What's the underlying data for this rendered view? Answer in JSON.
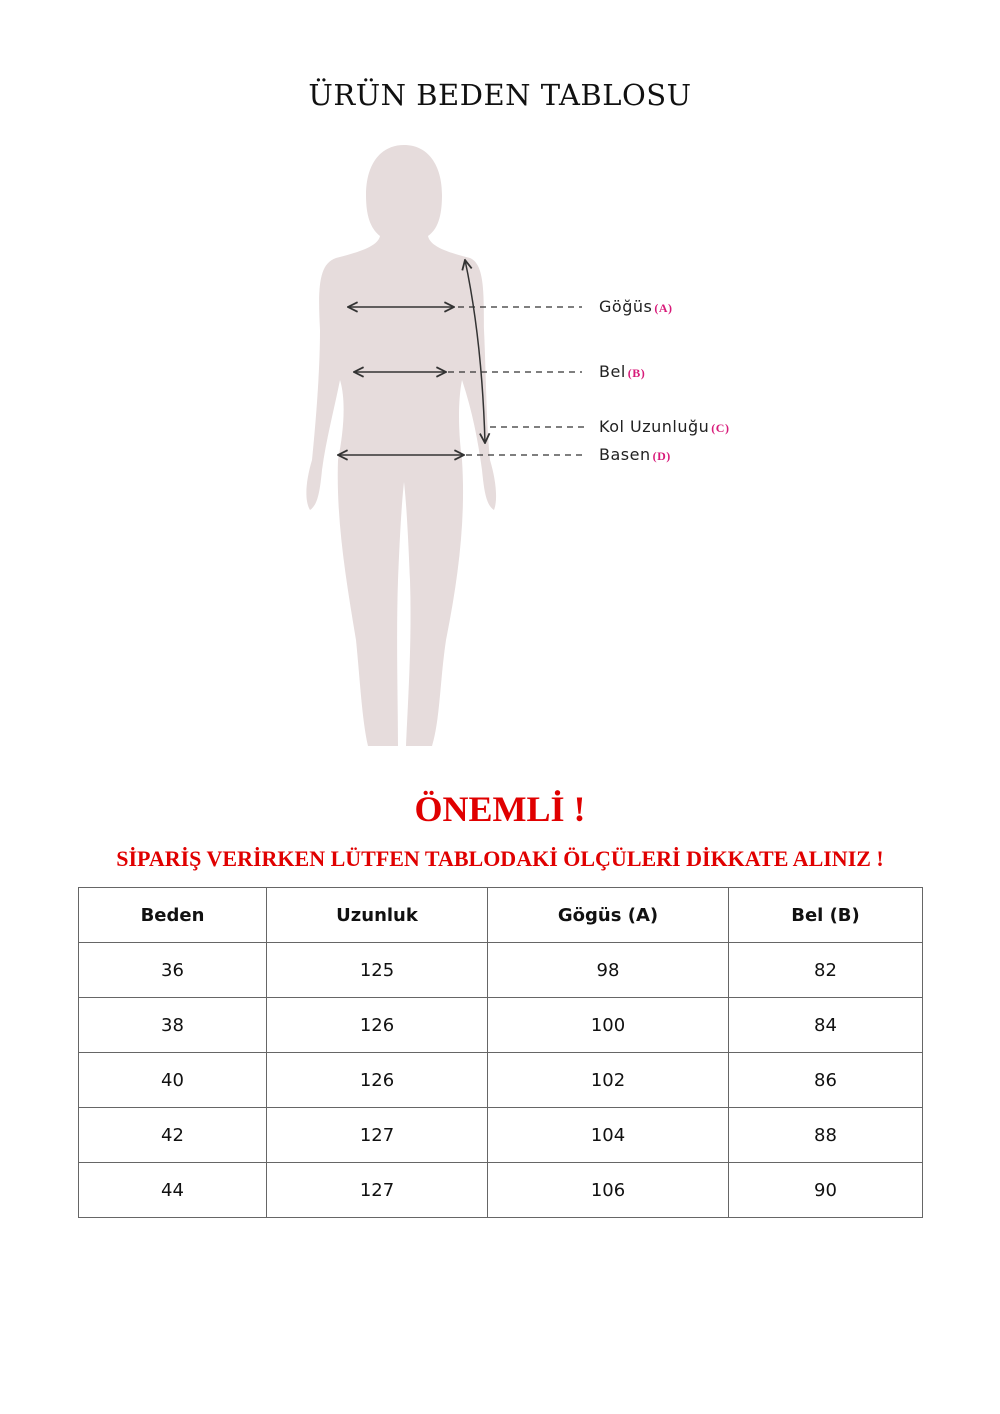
{
  "title": "ÜRÜN BEDEN TABLOSU",
  "figure": {
    "silhouette_color": "#e6dcdc",
    "labels": [
      {
        "text": "Göğüs",
        "tag": "(A)"
      },
      {
        "text": "Bel",
        "tag": "(B)"
      },
      {
        "text": "Kol Uzunluğu",
        "tag": "(C)"
      },
      {
        "text": "Basen",
        "tag": "(D)"
      }
    ]
  },
  "notice": {
    "heading": "ÖNEMLİ !",
    "text": "SİPARİŞ VERİRKEN LÜTFEN TABLODAKİ ÖLÇÜLERİ DİKKATE ALINIZ !",
    "color": "#e00000"
  },
  "table": {
    "headers": [
      "Beden",
      "Uzunluk",
      "Gögüs (A)",
      "Bel (B)"
    ],
    "rows": [
      [
        "36",
        "125",
        "98",
        "82"
      ],
      [
        "38",
        "126",
        "100",
        "84"
      ],
      [
        "40",
        "126",
        "102",
        "86"
      ],
      [
        "42",
        "127",
        "104",
        "88"
      ],
      [
        "44",
        "127",
        "106",
        "90"
      ]
    ]
  }
}
